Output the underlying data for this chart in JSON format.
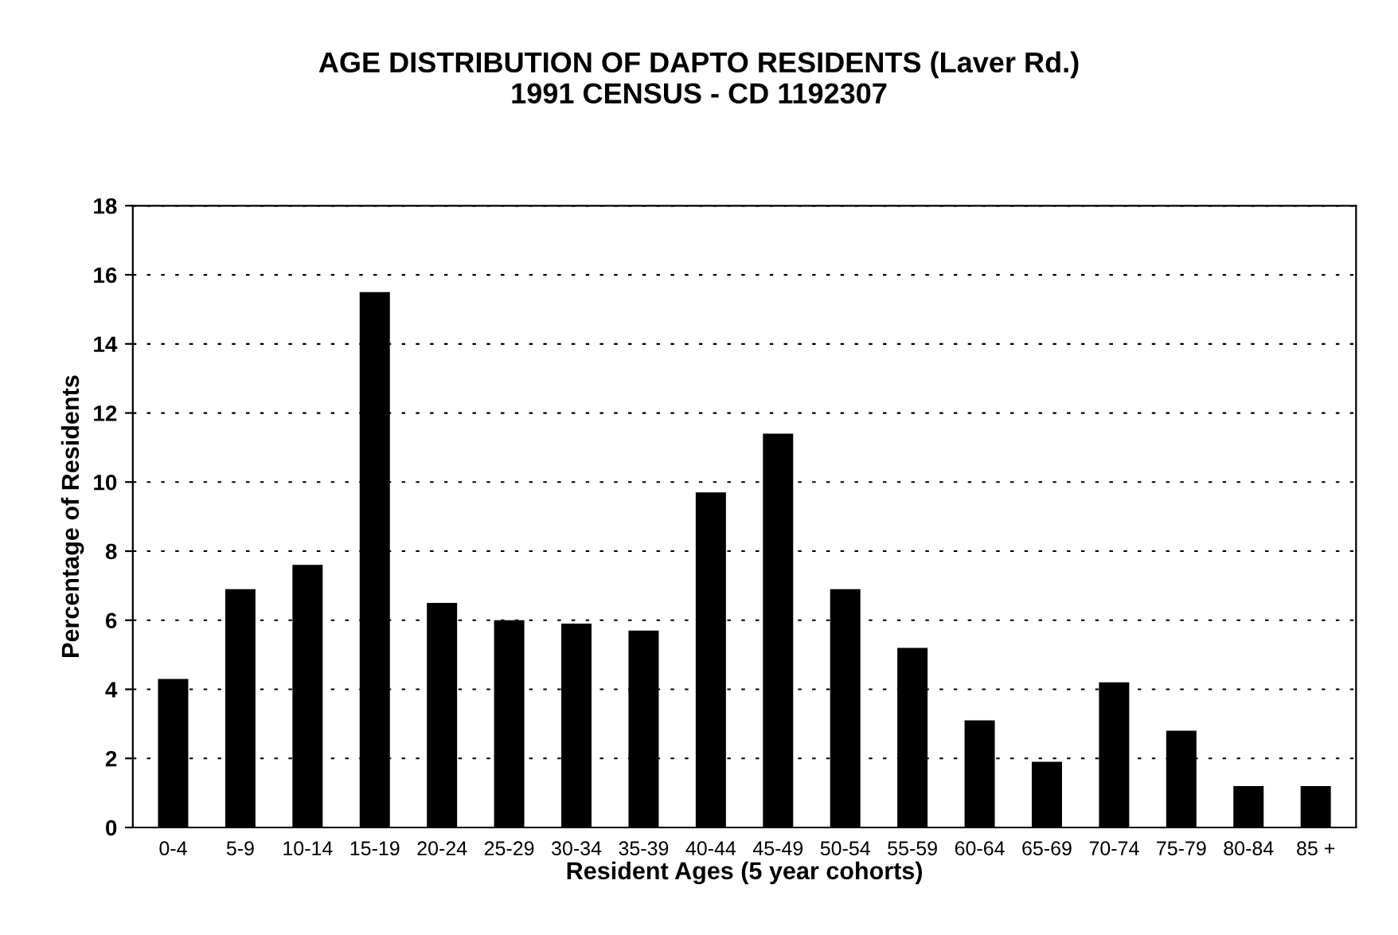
{
  "chart_data": {
    "type": "bar",
    "title": "AGE DISTRIBUTION OF DAPTO RESIDENTS (Laver Rd.)\n1991 CENSUS - CD 1192307",
    "xlabel": "Resident Ages (5 year cohorts)",
    "ylabel": "Percentage of Residents",
    "categories": [
      "0-4",
      "5-9",
      "10-14",
      "15-19",
      "20-24",
      "25-29",
      "30-34",
      "35-39",
      "40-44",
      "45-49",
      "50-54",
      "55-59",
      "60-64",
      "65-69",
      "70-74",
      "75-79",
      "80-84",
      "85 +"
    ],
    "values": [
      4.3,
      6.9,
      7.6,
      15.5,
      6.5,
      6.0,
      5.9,
      5.7,
      9.7,
      11.4,
      6.9,
      5.2,
      3.1,
      1.9,
      4.2,
      2.8,
      1.2,
      1.2
    ],
    "color": "#000000",
    "ylim": [
      0,
      18
    ],
    "yticks": [
      0,
      2,
      4,
      6,
      8,
      10,
      12,
      14,
      16,
      18
    ],
    "grid": "y"
  }
}
